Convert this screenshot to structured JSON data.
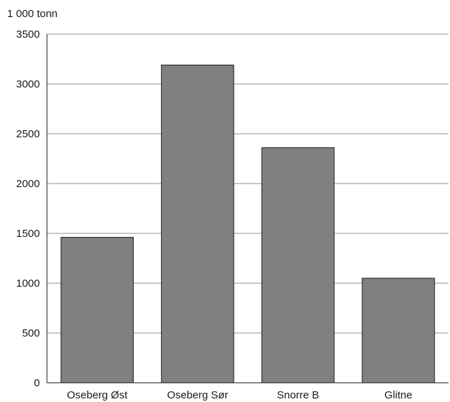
{
  "chart_data": {
    "type": "bar",
    "unit_label": "1 000 tonn",
    "categories": [
      "Oseberg Øst",
      "Oseberg Sør",
      "Snorre B",
      "Glitne"
    ],
    "values": [
      1460,
      3190,
      2360,
      1050
    ],
    "ylim": [
      0,
      3500
    ],
    "yticks": [
      0,
      500,
      1000,
      1500,
      2000,
      2500,
      3000,
      3500
    ],
    "grid": true,
    "bar_color": "#808083",
    "bar_edge_color": "#1a1a1a",
    "grid_color": "#c8c8c8"
  }
}
